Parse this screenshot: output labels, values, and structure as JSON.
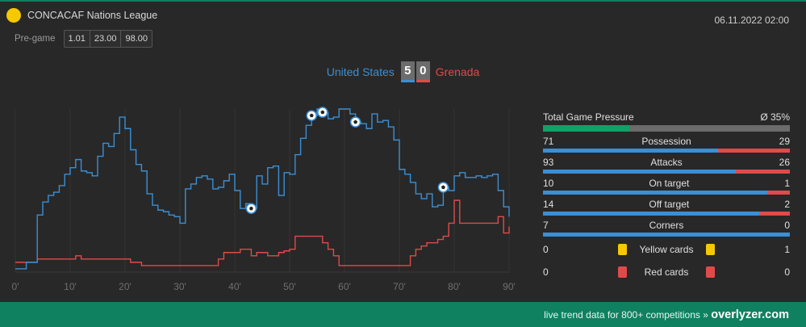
{
  "competition": {
    "name": "CONCACAF Nations League",
    "icon": "competition-dot-icon",
    "color": "#f5c800"
  },
  "datetime": "06.11.2022 02:00",
  "pregame": {
    "label": "Pre-game",
    "odds": [
      "1.01",
      "23.00",
      "98.00"
    ]
  },
  "match": {
    "home": {
      "name": "United States",
      "score": "5",
      "color": "#3a8fd6"
    },
    "away": {
      "name": "Grenada",
      "score": "0",
      "color": "#e04a4a"
    }
  },
  "stats": {
    "pressure": {
      "label": "Total Game Pressure",
      "value_text": "Ø 35%",
      "value": 0.35,
      "color": "#13a065"
    },
    "rows": [
      {
        "label": "Possession",
        "home": "71",
        "away": "29"
      },
      {
        "label": "Attacks",
        "home": "93",
        "away": "26"
      },
      {
        "label": "On target",
        "home": "10",
        "away": "1"
      },
      {
        "label": "Off target",
        "home": "14",
        "away": "2"
      },
      {
        "label": "Corners",
        "home": "7",
        "away": "0"
      }
    ],
    "cards": [
      {
        "label": "Yellow cards",
        "home": "0",
        "away": "1",
        "type": "yellow"
      },
      {
        "label": "Red cards",
        "home": "0",
        "away": "0",
        "type": "red"
      }
    ]
  },
  "footer": {
    "text": "live trend data for 800+ competitions »",
    "brand": "overlyzer.com"
  },
  "chart_data": {
    "type": "line",
    "x_ticks": [
      "0'",
      "10'",
      "20'",
      "30'",
      "40'",
      "50'",
      "60'",
      "70'",
      "80'",
      "90'"
    ],
    "xlim": [
      0,
      90
    ],
    "ylim": [
      0,
      100
    ],
    "grid": true,
    "series": [
      {
        "name": "United States",
        "color": "#3a8fd6",
        "x": [
          0,
          2,
          3,
          4,
          5,
          6,
          7,
          8,
          9,
          10,
          11,
          12,
          13,
          14,
          15,
          16,
          17,
          18,
          19,
          20,
          21,
          22,
          23,
          24,
          25,
          26,
          27,
          28,
          29,
          30,
          31,
          32,
          33,
          34,
          35,
          36,
          37,
          38,
          39,
          40,
          41,
          42,
          43,
          44,
          45,
          46,
          47,
          48,
          49,
          50,
          51,
          52,
          53,
          54,
          55,
          56,
          57,
          58,
          59,
          60,
          61,
          62,
          63,
          64,
          65,
          66,
          67,
          68,
          69,
          70,
          71,
          72,
          73,
          74,
          75,
          76,
          77,
          78,
          79,
          80,
          81,
          82,
          83,
          84,
          85,
          86,
          87,
          88,
          89,
          90
        ],
        "values": [
          2,
          6,
          6,
          35,
          43,
          47,
          49,
          53,
          60,
          64,
          69,
          62,
          61,
          59,
          71,
          79,
          77,
          85,
          95,
          88,
          75,
          66,
          62,
          48,
          41,
          38,
          37,
          35,
          34,
          30,
          51,
          54,
          58,
          59,
          57,
          51,
          52,
          56,
          60,
          50,
          39,
          42,
          39,
          59,
          54,
          64,
          65,
          47,
          61,
          60,
          72,
          82,
          90,
          96,
          100,
          98,
          94,
          95,
          100,
          100,
          97,
          92,
          91,
          88,
          97,
          92,
          93,
          89,
          81,
          63,
          60,
          55,
          48,
          45,
          48,
          40,
          41,
          52,
          50,
          59,
          61,
          58,
          58,
          59,
          58,
          59,
          60,
          50,
          40,
          34
        ],
        "goals_at": [
          43,
          54,
          56,
          62,
          78
        ]
      },
      {
        "name": "Grenada",
        "color": "#e04a4a",
        "x": [
          0,
          2,
          3,
          4,
          5,
          6,
          7,
          8,
          9,
          10,
          11,
          12,
          13,
          14,
          15,
          16,
          17,
          18,
          19,
          20,
          21,
          22,
          23,
          24,
          25,
          26,
          27,
          28,
          29,
          30,
          31,
          32,
          33,
          34,
          35,
          36,
          37,
          38,
          39,
          40,
          41,
          42,
          43,
          44,
          45,
          46,
          47,
          48,
          49,
          50,
          51,
          52,
          53,
          54,
          55,
          56,
          57,
          58,
          59,
          60,
          61,
          62,
          63,
          64,
          65,
          66,
          67,
          68,
          69,
          70,
          71,
          72,
          73,
          74,
          75,
          76,
          77,
          78,
          79,
          80,
          81,
          82,
          83,
          84,
          85,
          86,
          87,
          88,
          89,
          90
        ],
        "values": [
          6,
          6,
          6,
          8,
          8,
          8,
          8,
          8,
          8,
          8,
          10,
          8,
          8,
          8,
          8,
          8,
          8,
          8,
          8,
          8,
          6,
          6,
          4,
          4,
          4,
          4,
          4,
          4,
          4,
          4,
          4,
          4,
          4,
          4,
          4,
          4,
          8,
          12,
          12,
          12,
          14,
          14,
          10,
          12,
          12,
          10,
          10,
          12,
          13,
          14,
          22,
          22,
          22,
          22,
          22,
          18,
          14,
          10,
          4,
          4,
          4,
          4,
          4,
          4,
          4,
          4,
          4,
          4,
          4,
          4,
          4,
          10,
          14,
          16,
          18,
          18,
          20,
          22,
          30,
          44,
          30,
          30,
          30,
          30,
          30,
          30,
          30,
          34,
          24,
          28
        ]
      }
    ]
  }
}
